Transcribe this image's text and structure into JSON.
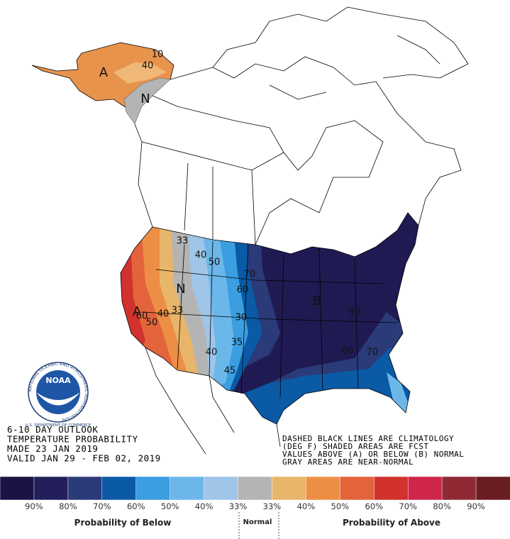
{
  "info": [
    "6-10 DAY OUTLOOK",
    "TEMPERATURE PROBABILITY",
    "MADE  23 JAN 2019",
    "VALID  JAN 29 - FEB 02, 2019"
  ],
  "notes": [
    "DASHED BLACK LINES ARE CLIMATOLOGY",
    "(DEG F) SHADED AREAS ARE FCST",
    "VALUES ABOVE (A) OR BELOW (B) NORMAL",
    "GRAY AREAS ARE NEAR-NORMAL"
  ],
  "logo": {
    "name": "NOAA",
    "agency": "NATIONAL OCEANIC AND ATMOSPHERIC ADMINISTRATION",
    "department": "U.S. DEPARTMENT OF COMMERCE"
  },
  "map_labels": [
    "A",
    "N",
    "40",
    "10",
    "A",
    "N",
    "B",
    "60",
    "50",
    "40",
    "33",
    "33",
    "40",
    "50",
    "60",
    "70",
    "90",
    "80",
    "70",
    "40",
    "45",
    "35",
    "30"
  ],
  "legend": {
    "colors": [
      "#1a1445",
      "#231f5b",
      "#2b3a78",
      "#0a5aa6",
      "#3a9ee0",
      "#6bb7ea",
      "#9fc5e8",
      "#b4b4b4",
      "#e8b66a",
      "#ec8f45",
      "#e3643a",
      "#d2322d",
      "#d0254a",
      "#8f2a35",
      "#6a1e22"
    ],
    "labels": [
      "90%",
      "80%",
      "70%",
      "60%",
      "50%",
      "40%",
      "33%",
      "33%",
      "40%",
      "50%",
      "60%",
      "70%",
      "80%",
      "90%"
    ],
    "captions": [
      "Probability of Below",
      "Normal",
      "Probability of Above"
    ]
  }
}
